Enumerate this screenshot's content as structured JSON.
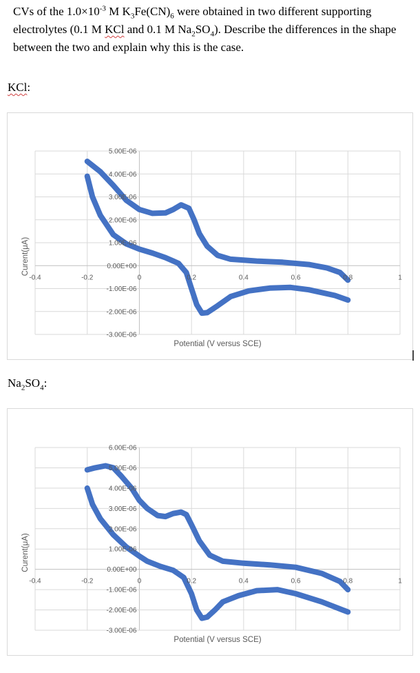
{
  "question": {
    "prefix": "CVs of the 1.0×10",
    "exp": "-3",
    "mid1": " M K",
    "sub1": "3",
    "mid2": "Fe(CN)",
    "sub2": "6",
    "mid3": " were obtained in two different supporting electrolytes (0.1 M ",
    "kcl": "KCl",
    "mid4": " and 0.1 M Na",
    "sub3": "2",
    "mid5": "SO",
    "sub4": "4",
    "suffix": "). Describe the differences in the shape between the two and explain why this is the case."
  },
  "sections": {
    "kcl_label": "KCl",
    "kcl_colon": ":",
    "na_label_a": "Na",
    "na_sub1": "2",
    "na_label_b": "SO",
    "na_sub2": "4",
    "na_colon": ":"
  },
  "chart_data": [
    {
      "type": "scatter",
      "title": "KCl",
      "xlabel": "Potential (V versus SCE)",
      "ylabel": "Curent(μA)",
      "xlim": [
        -0.4,
        1.0
      ],
      "ylim": [
        -3e-06,
        5e-06
      ],
      "x_ticks": [
        "-0.4",
        "-0.2",
        "0",
        "0.2",
        "0.4",
        "0.6",
        "0.8",
        "1"
      ],
      "y_ticks": [
        "5.00E-06",
        "4.00E-06",
        "3.00E-06",
        "2.00E-06",
        "1.00E-06",
        "0.00E+00",
        "-1.00E-06",
        "-2.00E-06",
        "-3.00E-06"
      ],
      "grid": true,
      "color": "#4472c4",
      "series": [
        {
          "name": "upper branch",
          "x": [
            -0.2,
            -0.15,
            -0.1,
            -0.05,
            0.0,
            0.05,
            0.1,
            0.13,
            0.16,
            0.19,
            0.21,
            0.23,
            0.26,
            0.3,
            0.35,
            0.45,
            0.55,
            0.65,
            0.72,
            0.77,
            0.8
          ],
          "y": [
            4.55e-06,
            4.1e-06,
            3.5e-06,
            2.85e-06,
            2.45e-06,
            2.28e-06,
            2.3e-06,
            2.45e-06,
            2.65e-06,
            2.5e-06,
            2e-06,
            1.4e-06,
            8.5e-07,
            4.5e-07,
            2.8e-07,
            2e-07,
            1.5e-07,
            5e-08,
            -1e-07,
            -3e-07,
            -6.3e-07
          ]
        },
        {
          "name": "lower branch",
          "x": [
            0.8,
            0.75,
            0.65,
            0.58,
            0.5,
            0.42,
            0.35,
            0.3,
            0.26,
            0.24,
            0.22,
            0.2,
            0.18,
            0.15,
            0.1,
            0.05,
            0.0,
            -0.05,
            -0.1,
            -0.15,
            -0.18,
            -0.2
          ],
          "y": [
            -1.5e-06,
            -1.3e-06,
            -1.05e-06,
            -9.5e-07,
            -9.8e-07,
            -1.1e-06,
            -1.35e-06,
            -1.75e-06,
            -2.05e-06,
            -2.07e-06,
            -1.7e-06,
            -1e-06,
            -3e-07,
            1e-07,
            3.5e-07,
            5.5e-07,
            7.2e-07,
            9.5e-07,
            1.35e-06,
            2.2e-06,
            3e-06,
            3.9e-06
          ]
        }
      ]
    },
    {
      "type": "scatter",
      "title": "Na2SO4",
      "xlabel": "Potential (V versus SCE)",
      "ylabel": "Curent(μA)",
      "xlim": [
        -0.4,
        1.0
      ],
      "ylim": [
        -3e-06,
        6e-06
      ],
      "x_ticks": [
        "-0.4",
        "-0.2",
        "0",
        "0.2",
        "0.4",
        "0.6",
        "0.8",
        "1"
      ],
      "y_ticks": [
        "6.00E-06",
        "5.00E-06",
        "4.00E-06",
        "3.00E-06",
        "2.00E-06",
        "1.00E-06",
        "0.00E+00",
        "-1.00E-06",
        "-2.00E-06",
        "-3.00E-06"
      ],
      "grid": true,
      "color": "#4472c4",
      "series": [
        {
          "name": "upper branch",
          "x": [
            -0.2,
            -0.17,
            -0.13,
            -0.1,
            -0.07,
            -0.03,
            0.0,
            0.03,
            0.07,
            0.1,
            0.13,
            0.16,
            0.18,
            0.2,
            0.23,
            0.27,
            0.32,
            0.4,
            0.5,
            0.6,
            0.7,
            0.77,
            0.8
          ],
          "y": [
            4.9e-06,
            5e-06,
            5.1e-06,
            5e-06,
            4.6e-06,
            4e-06,
            3.4e-06,
            3e-06,
            2.65e-06,
            2.6e-06,
            2.75e-06,
            2.82e-06,
            2.7e-06,
            2.2e-06,
            1.4e-06,
            7e-07,
            4e-07,
            3e-07,
            2.2e-07,
            1e-07,
            -2e-07,
            -6e-07,
            -1e-06
          ]
        },
        {
          "name": "lower branch",
          "x": [
            0.8,
            0.78,
            0.7,
            0.6,
            0.53,
            0.45,
            0.38,
            0.32,
            0.29,
            0.26,
            0.24,
            0.22,
            0.2,
            0.17,
            0.13,
            0.08,
            0.03,
            0.0,
            -0.05,
            -0.1,
            -0.15,
            -0.18,
            -0.2
          ],
          "y": [
            -2.1e-06,
            -2e-06,
            -1.6e-06,
            -1.2e-06,
            -1e-06,
            -1.05e-06,
            -1.3e-06,
            -1.6e-06,
            -2e-06,
            -2.35e-06,
            -2.41e-06,
            -2e-06,
            -1.2e-06,
            -4e-07,
            -5e-08,
            1.5e-07,
            4e-07,
            6.5e-07,
            1.1e-06,
            1.7e-06,
            2.5e-06,
            3.2e-06,
            4e-06
          ]
        }
      ]
    }
  ]
}
